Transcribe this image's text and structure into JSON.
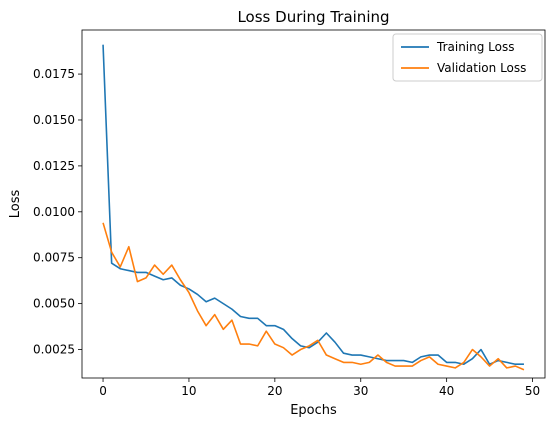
{
  "chart_data": {
    "type": "line",
    "title": "Loss During Training",
    "xlabel": "Epochs",
    "ylabel": "Loss",
    "xlim": [
      -2.45,
      51.45
    ],
    "ylim": [
      0.00095,
      0.0199
    ],
    "xticks": [
      0,
      10,
      20,
      30,
      40,
      50
    ],
    "xtick_labels": [
      "0",
      "10",
      "20",
      "30",
      "40",
      "50"
    ],
    "yticks": [
      0.0025,
      0.005,
      0.0075,
      0.01,
      0.0125,
      0.015,
      0.0175
    ],
    "ytick_labels": [
      "0.0025",
      "0.0050",
      "0.0075",
      "0.0100",
      "0.0125",
      "0.0150",
      "0.0175"
    ],
    "grid": false,
    "legend_position": "top-right",
    "x": [
      0,
      1,
      2,
      3,
      4,
      5,
      6,
      7,
      8,
      9,
      10,
      11,
      12,
      13,
      14,
      15,
      16,
      17,
      18,
      19,
      20,
      21,
      22,
      23,
      24,
      25,
      26,
      27,
      28,
      29,
      30,
      31,
      32,
      33,
      34,
      35,
      36,
      37,
      38,
      39,
      40,
      41,
      42,
      43,
      44,
      45,
      46,
      47,
      48,
      49
    ],
    "series": [
      {
        "name": "Training Loss",
        "color": "#1f77b4",
        "values": [
          0.0191,
          0.0072,
          0.0069,
          0.0068,
          0.0067,
          0.0067,
          0.0065,
          0.0063,
          0.0064,
          0.006,
          0.0058,
          0.0055,
          0.0051,
          0.0053,
          0.005,
          0.0047,
          0.0043,
          0.0042,
          0.0042,
          0.0038,
          0.0038,
          0.0036,
          0.0031,
          0.0027,
          0.0026,
          0.0029,
          0.0034,
          0.0029,
          0.0023,
          0.0022,
          0.0022,
          0.0021,
          0.002,
          0.0019,
          0.0019,
          0.0019,
          0.0018,
          0.0021,
          0.0022,
          0.0022,
          0.0018,
          0.0018,
          0.0017,
          0.002,
          0.0025,
          0.0017,
          0.0019,
          0.0018,
          0.0017,
          0.0017
        ]
      },
      {
        "name": "Validation Loss",
        "color": "#ff7f0e",
        "values": [
          0.0094,
          0.0078,
          0.007,
          0.0081,
          0.0062,
          0.0064,
          0.0071,
          0.0066,
          0.0071,
          0.0063,
          0.0056,
          0.0046,
          0.0038,
          0.0044,
          0.0036,
          0.0041,
          0.0028,
          0.0028,
          0.0027,
          0.0035,
          0.0028,
          0.0026,
          0.0022,
          0.0025,
          0.0027,
          0.003,
          0.0022,
          0.002,
          0.0018,
          0.0018,
          0.0017,
          0.0018,
          0.0022,
          0.0018,
          0.0016,
          0.0016,
          0.0016,
          0.0019,
          0.0021,
          0.0017,
          0.0016,
          0.0015,
          0.0018,
          0.0025,
          0.0021,
          0.0016,
          0.002,
          0.0015,
          0.0016,
          0.0014
        ]
      }
    ]
  }
}
